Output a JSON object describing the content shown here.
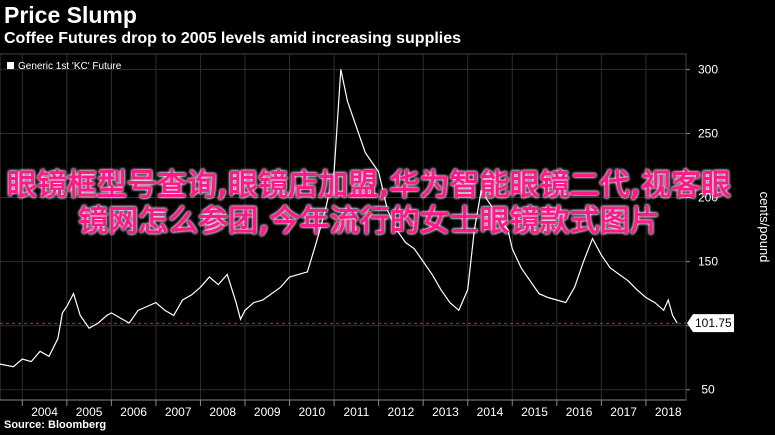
{
  "header": {
    "title": "Price Slump",
    "subtitle": "Coffee Futures drop to 2005 levels amid increasing supplies"
  },
  "source": "Source: Bloomberg",
  "overlay_text": "眼镜框型号查询,眼镜店加盟,华为智能眼镜二代,视客眼镜网怎么参团,今年流行的女士眼镜款式图片",
  "colors": {
    "background": "#000000",
    "line": "#ffffff",
    "reference_line": "#cc2244",
    "overlay": "#ff1a8c"
  },
  "chart_data": {
    "type": "line",
    "legend": [
      "Generic 1st 'KC' Future"
    ],
    "legend_position": "top-left",
    "ylabel": "cents/pound",
    "ylim": [
      42,
      312
    ],
    "yticks": [
      50,
      100,
      150,
      200,
      250,
      300
    ],
    "xlim": [
      2003.5,
      2018.9
    ],
    "xticks": [
      "2004",
      "2005",
      "2006",
      "2007",
      "2008",
      "2009",
      "2010",
      "2011",
      "2012",
      "2013",
      "2014",
      "2015",
      "2016",
      "2017",
      "2018"
    ],
    "grid": true,
    "last_value_label": "101.75",
    "reference_line_value": 101.75,
    "series": [
      {
        "name": "Generic 1st 'KC' Future",
        "x": [
          2003.5,
          2003.8,
          2004.0,
          2004.2,
          2004.4,
          2004.6,
          2004.8,
          2004.9,
          2005.0,
          2005.15,
          2005.3,
          2005.5,
          2005.7,
          2005.9,
          2006.0,
          2006.2,
          2006.4,
          2006.6,
          2006.8,
          2007.0,
          2007.2,
          2007.4,
          2007.6,
          2007.8,
          2008.0,
          2008.2,
          2008.4,
          2008.6,
          2008.8,
          2008.9,
          2009.0,
          2009.2,
          2009.4,
          2009.6,
          2009.8,
          2010.0,
          2010.2,
          2010.4,
          2010.6,
          2010.8,
          2011.0,
          2011.15,
          2011.3,
          2011.5,
          2011.7,
          2011.9,
          2012.0,
          2012.2,
          2012.4,
          2012.6,
          2012.8,
          2013.0,
          2013.2,
          2013.4,
          2013.6,
          2013.8,
          2014.0,
          2014.15,
          2014.3,
          2014.5,
          2014.7,
          2014.9,
          2015.0,
          2015.2,
          2015.4,
          2015.6,
          2015.8,
          2016.0,
          2016.2,
          2016.4,
          2016.6,
          2016.8,
          2017.0,
          2017.2,
          2017.4,
          2017.6,
          2017.8,
          2018.0,
          2018.2,
          2018.4,
          2018.5,
          2018.6,
          2018.7
        ],
        "values": [
          70,
          68,
          74,
          72,
          80,
          76,
          90,
          110,
          115,
          125,
          108,
          98,
          102,
          108,
          110,
          106,
          102,
          112,
          115,
          118,
          112,
          108,
          120,
          124,
          130,
          138,
          132,
          140,
          118,
          105,
          112,
          118,
          120,
          125,
          130,
          138,
          140,
          142,
          165,
          190,
          220,
          300,
          275,
          255,
          235,
          225,
          220,
          190,
          175,
          165,
          160,
          150,
          140,
          128,
          118,
          112,
          128,
          175,
          205,
          195,
          185,
          175,
          160,
          145,
          135,
          125,
          122,
          120,
          118,
          130,
          150,
          168,
          155,
          145,
          140,
          135,
          128,
          122,
          118,
          112,
          120,
          108,
          102
        ]
      }
    ]
  }
}
